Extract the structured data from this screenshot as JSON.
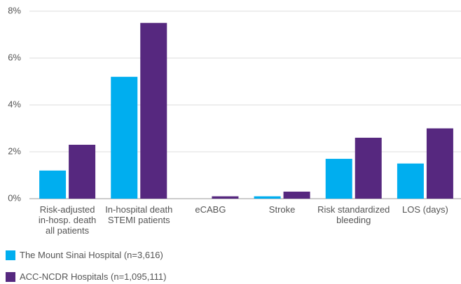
{
  "chart_data": {
    "type": "bar",
    "categories": [
      "Risk-adjusted\nin-hosp. death\nall patients",
      "In-hospital death\nSTEMI patients",
      "eCABG",
      "Stroke",
      "Risk standardized\nbleeding",
      "LOS (days)"
    ],
    "series": [
      {
        "name": "The Mount Sinai Hospital (n=3,616)",
        "color": "#00aeef",
        "values": [
          1.2,
          5.2,
          0,
          0.1,
          1.7,
          1.5
        ]
      },
      {
        "name": "ACC-NCDR Hospitals (n=1,095,111)",
        "color": "#56287f",
        "values": [
          2.3,
          7.5,
          0.1,
          0.3,
          2.6,
          3.0
        ]
      }
    ],
    "ylim": [
      0,
      8
    ],
    "yticks": [
      {
        "value": 0,
        "label": "0%"
      },
      {
        "value": 2,
        "label": "2%"
      },
      {
        "value": 4,
        "label": "4%"
      },
      {
        "value": 6,
        "label": "6%"
      },
      {
        "value": 8,
        "label": "8%"
      }
    ],
    "grid": true
  }
}
